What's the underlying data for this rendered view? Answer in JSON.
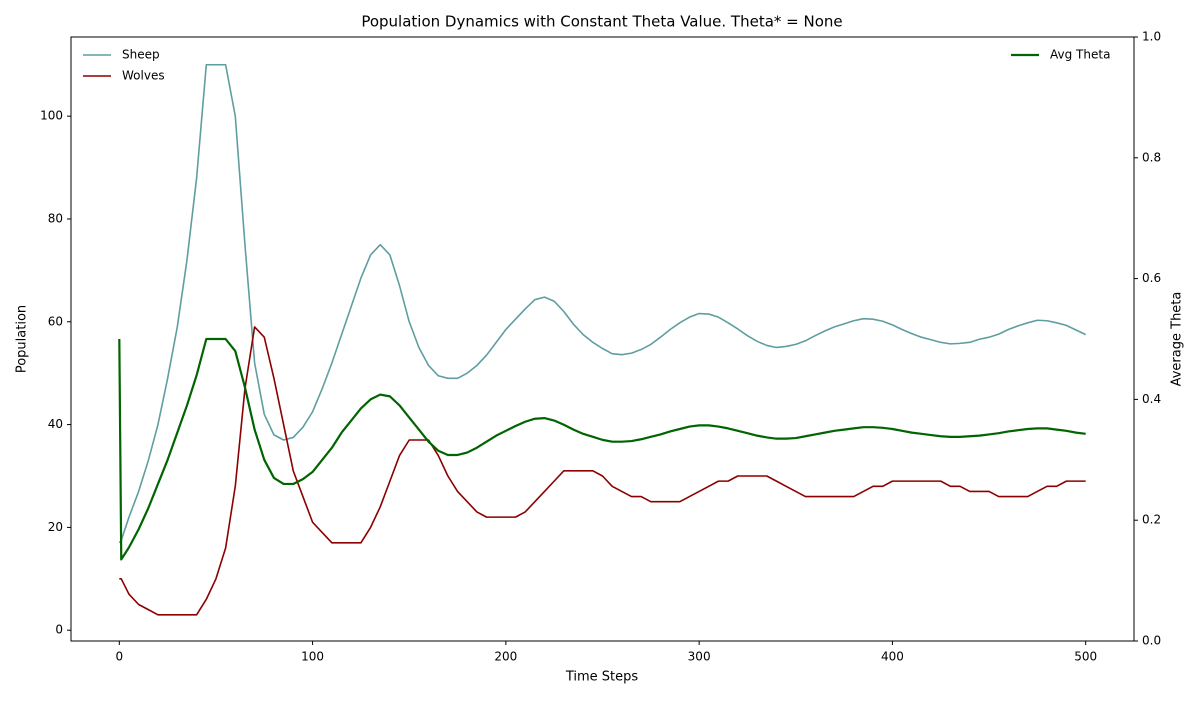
{
  "chart_data": {
    "type": "line",
    "title": "Population Dynamics with Constant Theta Value. Theta* = None",
    "x_label": "Time Steps",
    "y_label": "Population",
    "y2_label": "Average Theta",
    "x": [
      0,
      1,
      5,
      10,
      15,
      20,
      25,
      30,
      35,
      40,
      45,
      50,
      55,
      60,
      65,
      70,
      75,
      80,
      85,
      90,
      95,
      100,
      105,
      110,
      115,
      120,
      125,
      130,
      135,
      140,
      145,
      150,
      155,
      160,
      165,
      170,
      175,
      180,
      185,
      190,
      195,
      200,
      205,
      210,
      215,
      220,
      225,
      230,
      235,
      240,
      245,
      250,
      255,
      260,
      265,
      270,
      275,
      280,
      285,
      290,
      295,
      300,
      305,
      310,
      315,
      320,
      325,
      330,
      335,
      340,
      345,
      350,
      355,
      360,
      365,
      370,
      375,
      380,
      385,
      390,
      395,
      400,
      405,
      410,
      415,
      420,
      425,
      430,
      435,
      440,
      445,
      450,
      455,
      460,
      465,
      470,
      475,
      480,
      485,
      490,
      495,
      500
    ],
    "series": [
      {
        "name": "Sheep",
        "color": "#5f9ea0",
        "values": [
          17,
          17.5,
          22,
          27,
          33,
          40,
          49,
          59,
          72,
          88,
          110,
          110,
          110,
          100,
          75,
          52,
          42,
          38,
          37,
          37.5,
          39.5,
          42.5,
          47,
          52,
          57.5,
          63,
          68.5,
          73,
          75,
          73,
          67,
          60,
          55,
          51.5,
          49.5,
          49,
          49,
          50,
          51.5,
          53.5,
          56,
          58.5,
          60.5,
          62.5,
          64.3,
          64.8,
          64,
          62,
          59.5,
          57.5,
          56,
          54.8,
          53.8,
          53.6,
          53.9,
          54.6,
          55.6,
          57,
          58.5,
          59.8,
          60.9,
          61.6,
          61.5,
          60.9,
          59.8,
          58.6,
          57.3,
          56.2,
          55.4,
          55,
          55.2,
          55.6,
          56.3,
          57.3,
          58.2,
          59,
          59.6,
          60.2,
          60.6,
          60.5,
          60.1,
          59.4,
          58.5,
          57.7,
          57,
          56.5,
          56,
          55.7,
          55.8,
          56,
          56.6,
          57,
          57.6,
          58.5,
          59.2,
          59.8,
          60.3,
          60.2,
          59.8,
          59.3,
          58.4,
          57.5
        ]
      },
      {
        "name": "Wolves",
        "color": "#8b0000",
        "values": [
          10,
          10,
          7,
          5,
          4,
          3,
          3,
          3,
          3,
          3,
          6,
          10,
          16,
          28,
          47,
          59,
          57,
          49,
          40,
          31,
          26,
          21,
          19,
          17,
          17,
          17,
          17,
          20,
          24,
          29,
          34,
          37,
          37,
          37,
          34,
          30,
          27,
          25,
          23,
          22,
          22,
          22,
          22,
          23,
          25,
          27,
          29,
          31,
          31,
          31,
          31,
          30,
          28,
          27,
          26,
          26,
          25,
          25,
          25,
          25,
          26,
          27,
          28,
          29,
          29,
          30,
          30,
          30,
          30,
          29,
          28,
          27,
          26,
          26,
          26,
          26,
          26,
          26,
          27,
          28,
          28,
          29,
          29,
          29,
          29,
          29,
          29,
          28,
          28,
          27,
          27,
          27,
          26,
          26,
          26,
          26,
          27,
          28,
          28,
          29,
          29,
          29
        ]
      },
      {
        "name": "Avg Theta",
        "color": "#006400",
        "axis": "y2",
        "values": [
          0.5,
          0.135,
          0.155,
          0.185,
          0.22,
          0.26,
          0.3,
          0.345,
          0.39,
          0.44,
          0.5,
          0.5,
          0.5,
          0.48,
          0.42,
          0.35,
          0.3,
          0.27,
          0.26,
          0.26,
          0.268,
          0.28,
          0.3,
          0.32,
          0.345,
          0.365,
          0.385,
          0.4,
          0.408,
          0.405,
          0.39,
          0.37,
          0.35,
          0.33,
          0.315,
          0.308,
          0.308,
          0.312,
          0.32,
          0.33,
          0.34,
          0.348,
          0.356,
          0.363,
          0.368,
          0.369,
          0.365,
          0.358,
          0.35,
          0.343,
          0.338,
          0.333,
          0.33,
          0.33,
          0.331,
          0.334,
          0.338,
          0.342,
          0.347,
          0.351,
          0.355,
          0.357,
          0.357,
          0.355,
          0.352,
          0.348,
          0.344,
          0.34,
          0.337,
          0.335,
          0.335,
          0.336,
          0.339,
          0.342,
          0.345,
          0.348,
          0.35,
          0.352,
          0.354,
          0.354,
          0.353,
          0.351,
          0.348,
          0.345,
          0.343,
          0.341,
          0.339,
          0.338,
          0.338,
          0.339,
          0.34,
          0.342,
          0.344,
          0.347,
          0.349,
          0.351,
          0.352,
          0.352,
          0.35,
          0.348,
          0.345,
          0.343
        ]
      }
    ],
    "xlim": [
      -25,
      525
    ],
    "xticks": [
      0,
      100,
      200,
      300,
      400,
      500
    ],
    "ylim": [
      -2.1,
      115.4
    ],
    "yticks": [
      0,
      20,
      40,
      60,
      80,
      100
    ],
    "y2lim": [
      0,
      1
    ],
    "y2ticks": [
      {
        "value": 0,
        "label": "0.0"
      },
      0.2,
      0.4,
      0.6,
      0.8,
      {
        "value": 1,
        "label": "1.0"
      }
    ],
    "grid": false,
    "legend": "upper left",
    "y2_legend": "upper right"
  }
}
